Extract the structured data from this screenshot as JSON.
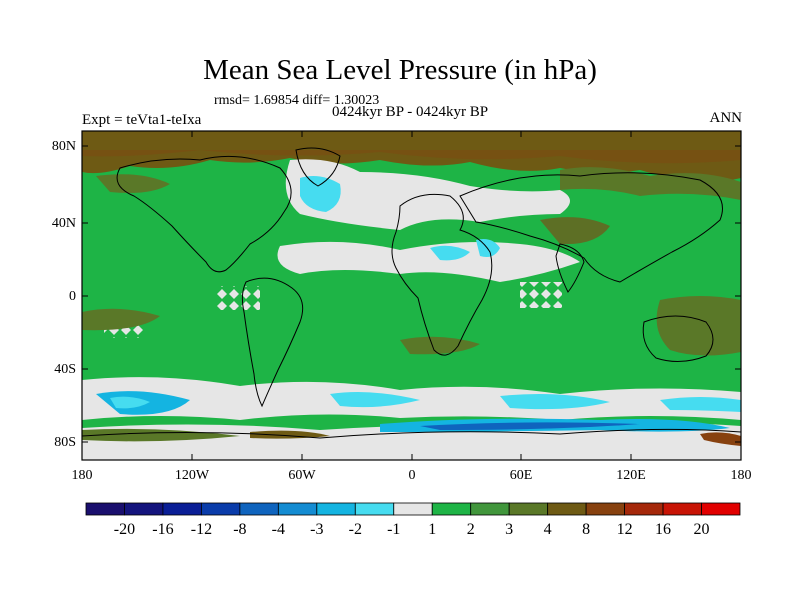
{
  "title": "Mean Sea Level Pressure (in hPa)",
  "stats": "rmsd= 1.69854 diff= 1.30023",
  "period": "0424kyr BP - 0424kyr BP",
  "experiment": "Expt = teVta1-teIxa",
  "season": "ANN",
  "lat_labels": [
    "80N",
    "40N",
    "0",
    "40S",
    "80S"
  ],
  "lon_labels": [
    "180",
    "120W",
    "60W",
    "0",
    "60E",
    "120E",
    "180"
  ],
  "colorbar": {
    "labels": [
      "-20",
      "-16",
      "-12",
      "-8",
      "-4",
      "-3",
      "-2",
      "-1",
      "1",
      "2",
      "3",
      "4",
      "8",
      "12",
      "16",
      "20"
    ],
    "colors": [
      "#1a0f6e",
      "#14147d",
      "#0a1e96",
      "#0a3caa",
      "#0f64be",
      "#148cd2",
      "#14b4e1",
      "#46dcf0",
      "#e6e6e6",
      "#1eb446",
      "#41963c",
      "#5a7828",
      "#6e5a14",
      "#87410f",
      "#a5280a",
      "#c81405",
      "#e10000"
    ]
  },
  "colors": {
    "neutral": "#e6e6e6",
    "green": "#1eb446",
    "olive": "#5a7828",
    "brown": "#6e5a14",
    "lightblue": "#46dcf0",
    "blue": "#14b4e1"
  }
}
